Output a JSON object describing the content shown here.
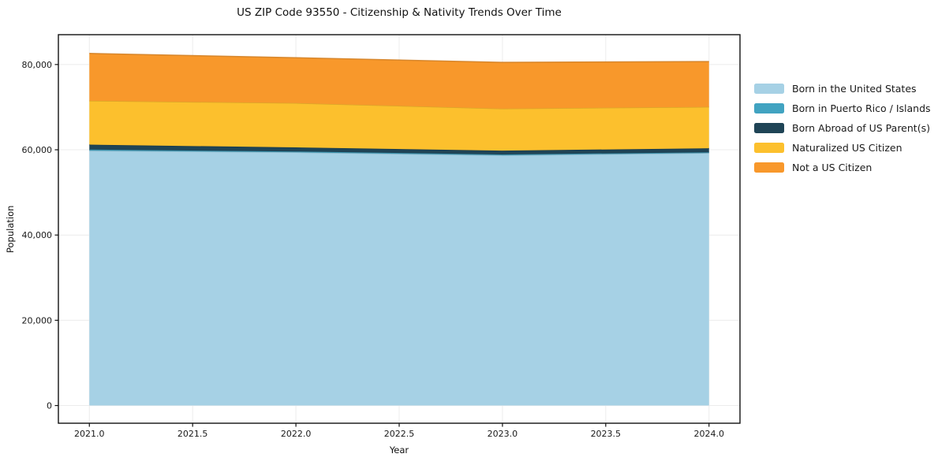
{
  "chart_data": {
    "type": "area",
    "stacked": true,
    "title": "US ZIP Code 93550 - Citizenship & Nativity Trends Over Time",
    "xlabel": "Year",
    "ylabel": "Population",
    "x": [
      2021,
      2022,
      2023,
      2024
    ],
    "series": [
      {
        "name": "Born in the United States",
        "color": "#A6D1E5",
        "values": [
          59800,
          59400,
          58700,
          59250
        ]
      },
      {
        "name": "Born in Puerto Rico / Islands",
        "color": "#41A3C1",
        "values": [
          250,
          200,
          200,
          150
        ]
      },
      {
        "name": "Born Abroad of US Parent(s)",
        "color": "#1F4456",
        "values": [
          1150,
          950,
          900,
          950
        ]
      },
      {
        "name": "Naturalized US Citizen",
        "color": "#FCC02D",
        "values": [
          10300,
          10400,
          9850,
          9700
        ]
      },
      {
        "name": "Not a US Citizen",
        "color": "#F8982B",
        "values": [
          11100,
          10650,
          10850,
          10650
        ]
      }
    ],
    "totals": [
      82600,
      81600,
      80500,
      80700
    ],
    "xlim": [
      2020.85,
      2024.15
    ],
    "ylim": [
      -4150,
      87000
    ],
    "x_ticks": {
      "values": [
        2021.0,
        2021.5,
        2022.0,
        2022.5,
        2023.0,
        2023.5,
        2024.0
      ],
      "labels": [
        "2021.0",
        "2021.5",
        "2022.0",
        "2022.5",
        "2023.0",
        "2023.5",
        "2024.0"
      ]
    },
    "y_ticks": {
      "values": [
        0,
        20000,
        40000,
        60000,
        80000
      ],
      "labels": [
        "0",
        "20,000",
        "40,000",
        "60,000",
        "80,000"
      ]
    },
    "grid": true,
    "legend_position": "right-outside"
  }
}
